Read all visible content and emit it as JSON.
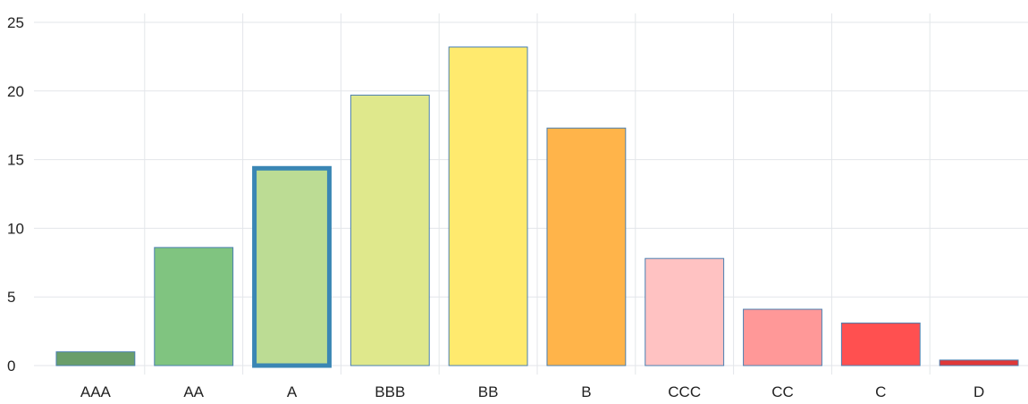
{
  "chart_data": {
    "type": "bar",
    "categories": [
      "AAA",
      "AA",
      "A",
      "BBB",
      "BB",
      "B",
      "CCC",
      "CC",
      "C",
      "D"
    ],
    "values": [
      1.0,
      8.6,
      14.5,
      19.7,
      23.2,
      17.3,
      7.8,
      4.1,
      3.1,
      0.4
    ],
    "colors": [
      "#6a9e6a",
      "#80c480",
      "#bcdc94",
      "#dfe88c",
      "#ffea6e",
      "#ffb44a",
      "#ffc2c2",
      "#ff9898",
      "#ff5050",
      "#e03838"
    ],
    "selected_index": 2,
    "ylim": [
      0,
      25
    ],
    "yticks": [
      0,
      5,
      10,
      15,
      20,
      25
    ],
    "grid": true,
    "title": "",
    "xlabel": "",
    "ylabel": ""
  }
}
